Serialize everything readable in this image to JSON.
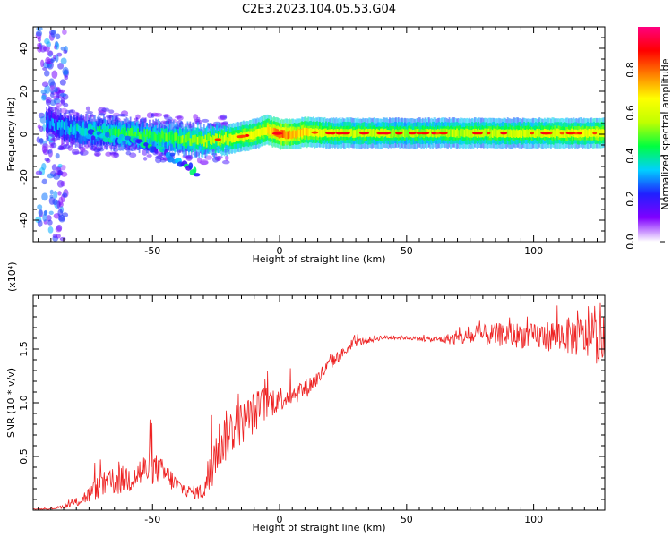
{
  "figure_title": "C2E3.2023.104.05.53.G04",
  "chart_data": [
    {
      "type": "heatmap",
      "title": "C2E3.2023.104.05.53.G04",
      "xlabel": "Height of straight line (km)",
      "ylabel": "Frequency (Hz)",
      "xlim": [
        -97,
        128
      ],
      "ylim": [
        -50,
        50
      ],
      "xticks": [
        -50,
        0,
        50,
        100
      ],
      "yticks": [
        -40,
        -20,
        0,
        20,
        40
      ],
      "colorbar": {
        "label": "Normalized spectral amplitude",
        "range": [
          0,
          1
        ],
        "ticks": [
          0.0,
          0.2,
          0.4,
          0.6,
          0.8
        ],
        "tick_labels": [
          "0.0",
          "0.2",
          "0.4",
          "0.6",
          "0.8"
        ],
        "colormap": [
          "#ffffff",
          "#8000ff",
          "#2020ff",
          "#00d0ff",
          "#00ff40",
          "#c0ff00",
          "#ffff00",
          "#ff8000",
          "#ff0000",
          "#ff0080"
        ]
      },
      "ridge": {
        "x": [
          -97,
          -92,
          -85,
          -80,
          -70,
          -60,
          -50,
          -40,
          -30,
          -20,
          -10,
          -5,
          0,
          5,
          10,
          20,
          50,
          100,
          128
        ],
        "center_frequency": [
          10,
          6,
          3,
          2,
          1,
          0,
          -1,
          -2,
          -3,
          -2,
          0,
          2,
          0,
          0,
          1,
          0.5,
          0.5,
          0.5,
          0.5
        ],
        "amplitude": [
          0.15,
          0.3,
          0.35,
          0.4,
          0.45,
          0.5,
          0.5,
          0.55,
          0.6,
          0.65,
          0.7,
          0.75,
          0.9,
          0.8,
          0.75,
          0.65,
          0.6,
          0.65,
          0.7
        ]
      },
      "side_branch": {
        "x": [
          -75,
          -60,
          -50,
          -40,
          -35,
          -32
        ],
        "center_frequency": [
          0,
          -3,
          -6,
          -12,
          -16,
          -18
        ]
      }
    },
    {
      "type": "line",
      "xlabel": "Height of straight line (km)",
      "ylabel": "SNR (10 * v/v)",
      "y_multiplier_label": "(x10⁴)",
      "xlim": [
        -97,
        128
      ],
      "ylim": [
        0,
        2.0
      ],
      "xticks": [
        -50,
        0,
        50,
        100
      ],
      "yticks": [
        0.5,
        1.0,
        1.5
      ],
      "ytick_labels": [
        "0.5",
        "1.0",
        "1.5"
      ],
      "color": "#ee2222",
      "envelope": {
        "x": [
          -97,
          -90,
          -85,
          -80,
          -75,
          -70,
          -65,
          -60,
          -55,
          -50,
          -45,
          -40,
          -35,
          -30,
          -27,
          -25,
          -20,
          -15,
          -10,
          -5,
          0,
          5,
          10,
          15,
          20,
          25,
          30,
          40,
          50,
          60,
          70,
          80,
          90,
          100,
          110,
          120,
          128
        ],
        "mean": [
          0.01,
          0.01,
          0.03,
          0.06,
          0.12,
          0.2,
          0.22,
          0.25,
          0.3,
          0.35,
          0.3,
          0.2,
          0.15,
          0.15,
          0.3,
          0.5,
          0.65,
          0.75,
          0.85,
          0.95,
          1.0,
          1.05,
          1.1,
          1.2,
          1.35,
          1.45,
          1.55,
          1.6,
          1.6,
          1.58,
          1.58,
          1.6,
          1.6,
          1.58,
          1.58,
          1.55,
          1.5
        ],
        "noise": [
          0.005,
          0.005,
          0.02,
          0.05,
          0.1,
          0.15,
          0.15,
          0.18,
          0.2,
          0.2,
          0.15,
          0.1,
          0.07,
          0.1,
          0.35,
          0.3,
          0.3,
          0.25,
          0.25,
          0.2,
          0.15,
          0.12,
          0.12,
          0.1,
          0.08,
          0.06,
          0.05,
          0.03,
          0.02,
          0.03,
          0.08,
          0.12,
          0.15,
          0.15,
          0.2,
          0.25,
          0.3
        ]
      }
    }
  ]
}
